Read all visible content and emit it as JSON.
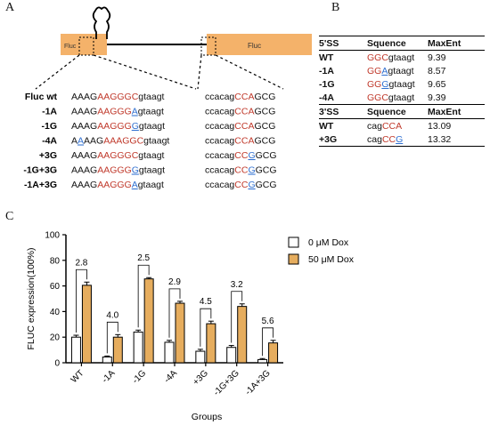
{
  "panels": {
    "a": "A",
    "b": "B",
    "c": "C"
  },
  "panelA": {
    "construct": {
      "left_label": "Fluc",
      "right_label": "Fluc"
    },
    "rows": [
      {
        "name": "Fluc  wt",
        "ss5": [
          [
            "AAAG",
            "k"
          ],
          [
            "AAGGGC",
            "r"
          ],
          [
            "gtaagt",
            "k"
          ]
        ],
        "ss3": [
          [
            "ccacag",
            "k"
          ],
          [
            "CCA",
            "r"
          ],
          [
            "GCG",
            "k"
          ]
        ]
      },
      {
        "name": "-1A",
        "ss5": [
          [
            "AAAG",
            "k"
          ],
          [
            "AAGGG",
            "r"
          ],
          [
            "A",
            "b"
          ],
          [
            "gtaagt",
            "k"
          ]
        ],
        "ss3": [
          [
            "ccacag",
            "k"
          ],
          [
            "CCA",
            "r"
          ],
          [
            "GCG",
            "k"
          ]
        ]
      },
      {
        "name": "-1G",
        "ss5": [
          [
            "AAAG",
            "k"
          ],
          [
            "AAGGG",
            "r"
          ],
          [
            "G",
            "b"
          ],
          [
            "gtaagt",
            "k"
          ]
        ],
        "ss3": [
          [
            "ccacag",
            "k"
          ],
          [
            "CCA",
            "r"
          ],
          [
            "GCG",
            "k"
          ]
        ]
      },
      {
        "name": "-4A",
        "ss5": [
          [
            "A",
            "k"
          ],
          [
            "A",
            "b"
          ],
          [
            "AAG",
            "k"
          ],
          [
            "AAA",
            "r"
          ],
          [
            "GGC",
            "r"
          ],
          [
            "gtaagt",
            "k"
          ]
        ],
        "ss3": [
          [
            "ccacag",
            "k"
          ],
          [
            "CCA",
            "r"
          ],
          [
            "GCG",
            "k"
          ]
        ]
      },
      {
        "name": "+3G",
        "ss5": [
          [
            "AAAG",
            "k"
          ],
          [
            "AAGGGC",
            "r"
          ],
          [
            "gtaagt",
            "k"
          ]
        ],
        "ss3": [
          [
            "ccacag",
            "k"
          ],
          [
            "CC",
            "r"
          ],
          [
            "G",
            "b"
          ],
          [
            "GCG",
            "k"
          ]
        ]
      },
      {
        "name": "-1G+3G",
        "ss5": [
          [
            "AAAG",
            "k"
          ],
          [
            "AAGGG",
            "r"
          ],
          [
            "G",
            "b"
          ],
          [
            "gtaagt",
            "k"
          ]
        ],
        "ss3": [
          [
            "ccacag",
            "k"
          ],
          [
            "CC",
            "r"
          ],
          [
            "G",
            "b"
          ],
          [
            "GCG",
            "k"
          ]
        ]
      },
      {
        "name": "-1A+3G",
        "ss5": [
          [
            "AAAG",
            "k"
          ],
          [
            "AAGGG",
            "r"
          ],
          [
            "A",
            "b"
          ],
          [
            "gtaagt",
            "k"
          ]
        ],
        "ss3": [
          [
            "ccacag",
            "k"
          ],
          [
            "CC",
            "r"
          ],
          [
            "G",
            "b"
          ],
          [
            "GCG",
            "k"
          ]
        ]
      }
    ]
  },
  "panelB": {
    "ss5_header": [
      "5'SS",
      "Squence",
      "MaxEnt"
    ],
    "ss5_rows": [
      {
        "label": "WT",
        "seq": [
          [
            "GGC",
            "r"
          ],
          [
            "gtaagt",
            "k"
          ]
        ],
        "score": "9.39"
      },
      {
        "label": "-1A",
        "seq": [
          [
            "GG",
            "r"
          ],
          [
            "A",
            "b"
          ],
          [
            "gtaagt",
            "k"
          ]
        ],
        "score": "8.57"
      },
      {
        "label": "-1G",
        "seq": [
          [
            "GG",
            "r"
          ],
          [
            "G",
            "b"
          ],
          [
            "gtaagt",
            "k"
          ]
        ],
        "score": "9.65"
      },
      {
        "label": "-4A",
        "seq": [
          [
            "GGC",
            "r"
          ],
          [
            "gtaagt",
            "k"
          ]
        ],
        "score": "9.39"
      }
    ],
    "ss3_header": [
      "3'SS",
      "Squence",
      "MaxEnt"
    ],
    "ss3_rows": [
      {
        "label": "WT",
        "seq": [
          [
            "cag",
            "k"
          ],
          [
            "CCA",
            "r"
          ]
        ],
        "score": "13.09"
      },
      {
        "label": "+3G",
        "seq": [
          [
            "cag",
            "k"
          ],
          [
            "CC",
            "r"
          ],
          [
            "G",
            "b"
          ]
        ],
        "score": "13.32"
      }
    ]
  },
  "chart_data": {
    "type": "bar",
    "categories": [
      "WT",
      "-1A",
      "-1G",
      "-4A",
      "+3G",
      "-1G+3G",
      "-1A+3G"
    ],
    "series": [
      {
        "name": "0 μM Dox",
        "values": [
          20,
          4.5,
          24,
          16,
          9,
          12,
          2.5
        ],
        "errors": [
          1.5,
          0.8,
          1.5,
          1.5,
          1.5,
          1.5,
          0.8
        ]
      },
      {
        "name": "50 μM Dox",
        "values": [
          60.5,
          20,
          65.5,
          46.5,
          30.5,
          44,
          15.5
        ],
        "errors": [
          2.5,
          2,
          1,
          1.5,
          2,
          2,
          2
        ]
      }
    ],
    "fold_changes": [
      "2.8",
      "4.0",
      "2.5",
      "2.9",
      "4.5",
      "3.2",
      "5.6"
    ],
    "xlabel": "Groups",
    "ylabel": "FLUC expression(100%)",
    "ylim": [
      0,
      100
    ],
    "yticks": [
      0,
      20,
      40,
      60,
      80,
      100
    ],
    "legend": "top-right",
    "colors": {
      "dox0": "#ffffff",
      "dox50": "#e6ad5e",
      "error": "#000000",
      "construct": "#f4b26a"
    }
  }
}
